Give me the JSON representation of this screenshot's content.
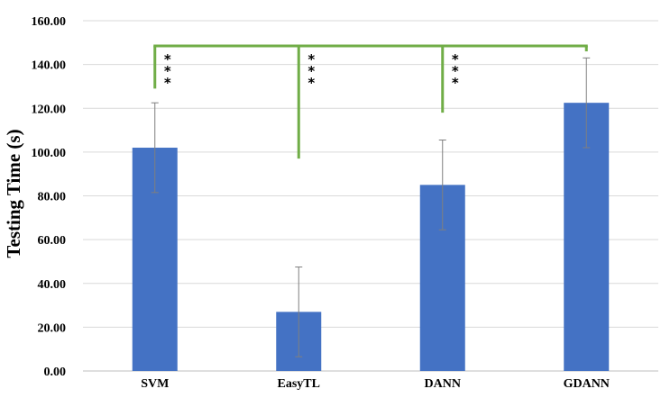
{
  "chart_data": {
    "type": "bar",
    "categories": [
      "SVM",
      "EasyTL",
      "DANN",
      "GDANN"
    ],
    "values": [
      102.0,
      27.0,
      85.0,
      122.5
    ],
    "error": [
      20.5,
      20.5,
      20.5,
      20.5
    ],
    "ylabel": "Testing Time (s)",
    "xlabel": "",
    "ylim": [
      0,
      160
    ],
    "yticks": [
      "0.00",
      "20.00",
      "40.00",
      "60.00",
      "80.00",
      "100.00",
      "120.00",
      "140.00",
      "160.00"
    ],
    "ytick_values": [
      0,
      20,
      40,
      60,
      80,
      100,
      120,
      140,
      160
    ],
    "grid": true,
    "bar_color": "#4472C4",
    "error_bar_color": "#7f7f7f",
    "significance": {
      "color": "#70AD47",
      "bracket_level": 148.5,
      "target": "GDANN",
      "marker": "***",
      "comparisons": [
        {
          "from": "SVM",
          "end": 129
        },
        {
          "from": "EasyTL",
          "end": 97
        },
        {
          "from": "DANN",
          "end": 118
        }
      ]
    }
  }
}
